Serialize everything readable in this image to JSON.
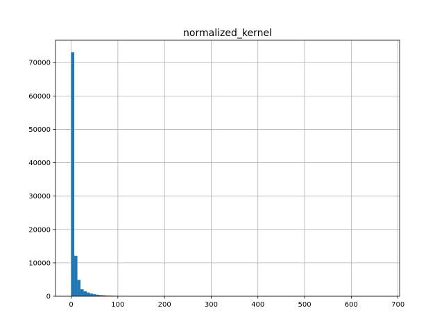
{
  "chart_data": {
    "type": "bar",
    "title": "normalized_kernel",
    "xlabel": "",
    "ylabel": "",
    "xlim": [
      -33.5,
      703.5
    ],
    "ylim": [
      0,
      76700
    ],
    "grid": true,
    "bar_color": "#1f77b4",
    "bins": [
      {
        "x0": 0.0,
        "x1": 6.7,
        "count": 73100
      },
      {
        "x0": 6.7,
        "x1": 13.4,
        "count": 12100
      },
      {
        "x0": 13.4,
        "x1": 20.1,
        "count": 4900
      },
      {
        "x0": 20.1,
        "x1": 26.8,
        "count": 2100
      },
      {
        "x0": 26.8,
        "x1": 33.5,
        "count": 1500
      },
      {
        "x0": 33.5,
        "x1": 40.2,
        "count": 1100
      },
      {
        "x0": 40.2,
        "x1": 46.9,
        "count": 800
      },
      {
        "x0": 46.9,
        "x1": 53.6,
        "count": 600
      },
      {
        "x0": 53.6,
        "x1": 60.3,
        "count": 450
      },
      {
        "x0": 60.3,
        "x1": 67.0,
        "count": 350
      },
      {
        "x0": 67.0,
        "x1": 73.7,
        "count": 280
      },
      {
        "x0": 73.7,
        "x1": 80.4,
        "count": 220
      },
      {
        "x0": 80.4,
        "x1": 87.1,
        "count": 180
      },
      {
        "x0": 87.1,
        "x1": 93.8,
        "count": 150
      },
      {
        "x0": 93.8,
        "x1": 100.5,
        "count": 120
      },
      {
        "x0": 100.5,
        "x1": 107.2,
        "count": 90
      },
      {
        "x0": 107.2,
        "x1": 113.9,
        "count": 70
      },
      {
        "x0": 113.9,
        "x1": 120.6,
        "count": 55
      },
      {
        "x0": 120.6,
        "x1": 127.3,
        "count": 45
      },
      {
        "x0": 127.3,
        "x1": 134.0,
        "count": 35
      },
      {
        "x0": 134.0,
        "x1": 140.7,
        "count": 30
      },
      {
        "x0": 140.7,
        "x1": 147.4,
        "count": 25
      },
      {
        "x0": 147.4,
        "x1": 154.1,
        "count": 20
      },
      {
        "x0": 154.1,
        "x1": 160.8,
        "count": 18
      },
      {
        "x0": 160.8,
        "x1": 167.5,
        "count": 15
      }
    ],
    "x_ticks": [
      0,
      100,
      200,
      300,
      400,
      500,
      600,
      700
    ],
    "y_ticks": [
      0,
      10000,
      20000,
      30000,
      40000,
      50000,
      60000,
      70000
    ]
  }
}
